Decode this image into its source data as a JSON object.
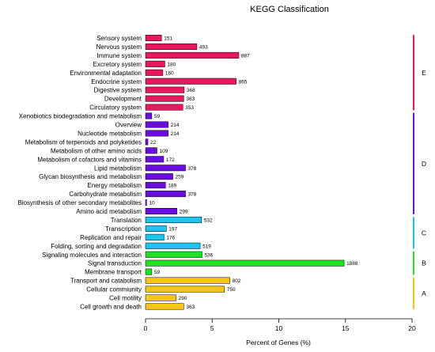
{
  "chart_data": {
    "type": "bar",
    "orientation": "horizontal",
    "title": "KEGG Classification",
    "xlabel": "Percent of Genes (%)",
    "ylabel": "",
    "xlim": [
      0,
      20
    ],
    "xticks": [
      0,
      5,
      10,
      15,
      20
    ],
    "grid": false,
    "categories": [
      {
        "name": "Sensory system",
        "value": 151,
        "percent": 1.2,
        "group": "E"
      },
      {
        "name": "Nervous system",
        "value": 493,
        "percent": 3.85,
        "group": "E"
      },
      {
        "name": "Immune system",
        "value": 887,
        "percent": 7.0,
        "group": "E"
      },
      {
        "name": "Excretory system",
        "value": 180,
        "percent": 1.45,
        "group": "E"
      },
      {
        "name": "Environmental adaptation",
        "value": 160,
        "percent": 1.3,
        "group": "E"
      },
      {
        "name": "Endocrine system",
        "value": 865,
        "percent": 6.8,
        "group": "E"
      },
      {
        "name": "Digestive system",
        "value": 368,
        "percent": 2.9,
        "group": "E"
      },
      {
        "name": "Development",
        "value": 363,
        "percent": 2.87,
        "group": "E"
      },
      {
        "name": "Circulatory system",
        "value": 353,
        "percent": 2.8,
        "group": "E"
      },
      {
        "name": "Xenobiotics biodegradation and metabolism",
        "value": 59,
        "percent": 0.47,
        "group": "D"
      },
      {
        "name": "Overview",
        "value": 214,
        "percent": 1.7,
        "group": "D"
      },
      {
        "name": "Nucleotide metabolism",
        "value": 214,
        "percent": 1.7,
        "group": "D"
      },
      {
        "name": "Metabolism of terpenoids and polyketides",
        "value": 22,
        "percent": 0.18,
        "group": "D"
      },
      {
        "name": "Metabolism of other amino acids",
        "value": 109,
        "percent": 0.86,
        "group": "D"
      },
      {
        "name": "Metabolism of cofactors and vitamins",
        "value": 172,
        "percent": 1.36,
        "group": "D"
      },
      {
        "name": "Lipid metabolism",
        "value": 378,
        "percent": 3.0,
        "group": "D"
      },
      {
        "name": "Glycan biosynthesis and metabolism",
        "value": 259,
        "percent": 2.05,
        "group": "D"
      },
      {
        "name": "Energy metabolism",
        "value": 189,
        "percent": 1.5,
        "group": "D"
      },
      {
        "name": "Carbohydrate metabolism",
        "value": 378,
        "percent": 3.0,
        "group": "D"
      },
      {
        "name": "Biosynthesis of other secondary metabolites",
        "value": 10,
        "percent": 0.08,
        "group": "D"
      },
      {
        "name": "Amino acid metabolism",
        "value": 299,
        "percent": 2.36,
        "group": "D"
      },
      {
        "name": "Translation",
        "value": 532,
        "percent": 4.2,
        "group": "C"
      },
      {
        "name": "Transcription",
        "value": 197,
        "percent": 1.56,
        "group": "C"
      },
      {
        "name": "Replication and repair",
        "value": 176,
        "percent": 1.39,
        "group": "C"
      },
      {
        "name": "Folding, sorting and degradation",
        "value": 519,
        "percent": 4.1,
        "group": "C"
      },
      {
        "name": "Signaling molecules and interaction",
        "value": 536,
        "percent": 4.24,
        "group": "B"
      },
      {
        "name": "Signal transduction",
        "value": 1888,
        "percent": 14.9,
        "group": "B"
      },
      {
        "name": "Membrane transport",
        "value": 59,
        "percent": 0.47,
        "group": "B"
      },
      {
        "name": "Transport and catabolism",
        "value": 802,
        "percent": 6.33,
        "group": "A"
      },
      {
        "name": "Cellular commiunity",
        "value": 750,
        "percent": 5.92,
        "group": "A"
      },
      {
        "name": "Cell motility",
        "value": 290,
        "percent": 2.29,
        "group": "A"
      },
      {
        "name": "Cell growth and death",
        "value": 363,
        "percent": 2.87,
        "group": "A"
      }
    ],
    "groups": [
      {
        "name": "E",
        "color": "#e8185f"
      },
      {
        "name": "D",
        "color": "#6a0de0"
      },
      {
        "name": "C",
        "color": "#1ec4f0"
      },
      {
        "name": "B",
        "color": "#22e022"
      },
      {
        "name": "A",
        "color": "#f5c518"
      }
    ]
  }
}
